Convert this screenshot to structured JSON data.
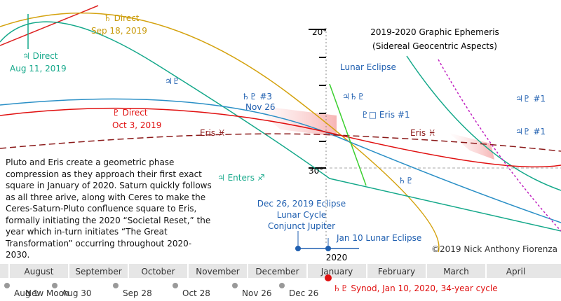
{
  "header": {
    "title": "2019-2020 Graphic Ephemeris",
    "subtitle": "(Sidereal Geocentric Aspects)"
  },
  "axis": {
    "top": "20°",
    "bottom": "30°",
    "year": "2020",
    "months": [
      "August",
      "September",
      "October",
      "November",
      "December",
      "January",
      "February",
      "March",
      "April"
    ]
  },
  "labels": [
    "♄ Direct",
    "Sep 18, 2019",
    "♃ Direct",
    "Aug 11, 2019",
    "♇ Direct",
    "Oct 3, 2019",
    "♃ Enters ♐",
    "Lunar Eclipse",
    "♇□ Eris #1",
    "♄♇ #3",
    "Nov 26",
    "Eris ♓",
    "Eris ♓",
    "♃♇ #1",
    "Dec 26, 2019 Eclipse",
    "Lunar Cycle",
    "Conjunct Jupiter",
    "Jan 10 Lunar Eclipse",
    "♃♄♇",
    "♃♇",
    "♄♇",
    "♃♇ #1"
  ],
  "paragraph": "Pluto and Eris create a geometric phase compression as they approach their first exact square in January of 2020. Saturn quickly follows as all three arive, along with Ceres to make the Ceres-Saturn-Pluto confluence square to Eris, formally initiating the 2020 “Societal Reset,” the year which in-turn initiates “The Great Transformation” occurring throughout 2020-2030.",
  "copyright": "©2019 Nick Anthony Fiorenza",
  "moons": [
    "Aug 1",
    "New Moon",
    "Aug 30",
    "Sep 28",
    "Oct 28",
    "Nov 26",
    "Dec 26"
  ],
  "synod": "♄♇ Synod, Jan 10, 2020, 34-year cycle"
}
